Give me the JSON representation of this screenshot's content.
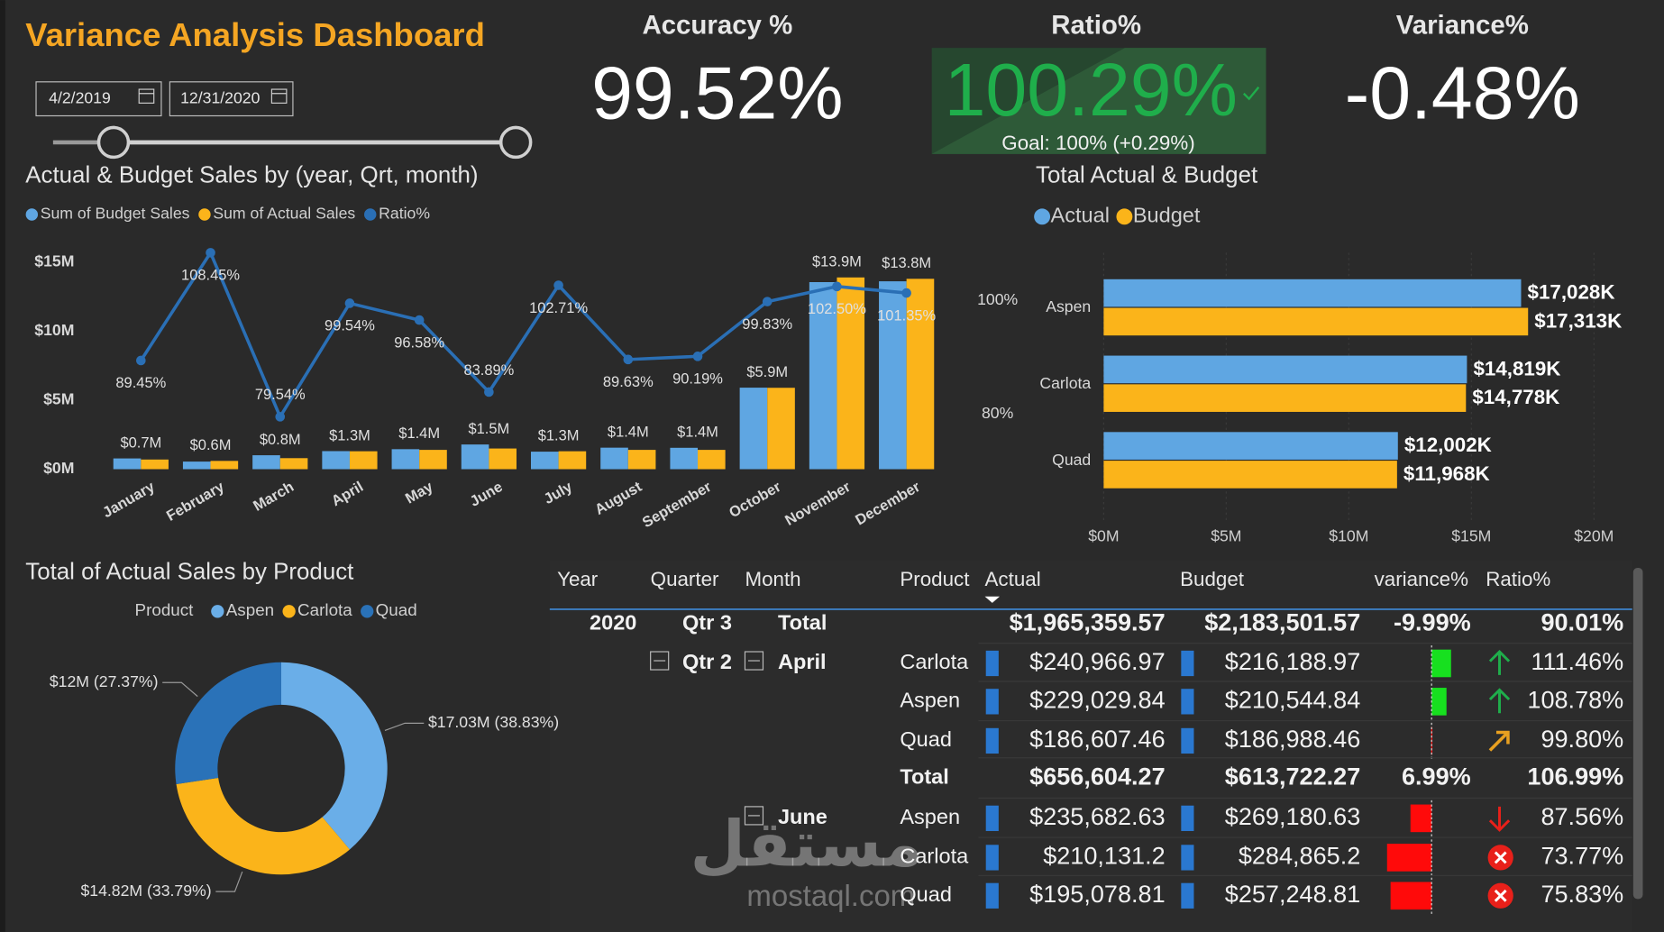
{
  "header": {
    "title": "Variance Analysis Dashboard",
    "date_from": "4/2/2019",
    "date_to": "12/31/2020"
  },
  "kpis": {
    "accuracy": {
      "title": "Accuracy %",
      "value": "99.52%"
    },
    "ratio": {
      "title": "Ratio%",
      "value": "100.29%",
      "goal": "Goal: 100% (+0.29%)"
    },
    "variance": {
      "title": "Variance%",
      "value": "-0.48%"
    }
  },
  "chart_data": [
    {
      "type": "combo",
      "title": "Actual & Budget Sales by (year, Qrt, month)",
      "categories": [
        "January",
        "February",
        "March",
        "April",
        "May",
        "June",
        "July",
        "August",
        "September",
        "October",
        "November",
        "December"
      ],
      "series": [
        {
          "name": "Sum of Budget Sales",
          "type": "bar",
          "color": "#5fa6e2",
          "values": [
            0.78,
            0.55,
            1.01,
            1.31,
            1.45,
            1.79,
            1.27,
            1.56,
            1.55,
            5.91,
            13.56,
            13.62
          ]
        },
        {
          "name": "Sum of Actual Sales",
          "type": "bar",
          "color": "#fbb41a",
          "values": [
            0.7,
            0.6,
            0.8,
            1.3,
            1.4,
            1.5,
            1.3,
            1.4,
            1.4,
            5.9,
            13.9,
            13.8
          ],
          "value_labels": [
            "$0.7M",
            "$0.6M",
            "$0.8M",
            "$1.3M",
            "$1.4M",
            "$1.5M",
            "$1.3M",
            "$1.4M",
            "$1.4M",
            "$5.9M",
            "$13.9M",
            "$13.8M"
          ]
        },
        {
          "name": "Ratio%",
          "type": "line",
          "axis": "y2",
          "color": "#2a6fb5",
          "values": [
            89.45,
            108.45,
            79.54,
            99.54,
            96.58,
            83.89,
            102.71,
            89.63,
            90.19,
            99.83,
            102.5,
            101.35
          ],
          "value_labels": [
            "89.45%",
            "108.45%",
            "79.54%",
            "99.54%",
            "96.58%",
            "83.89%",
            "102.71%",
            "89.63%",
            "90.19%",
            "99.83%",
            "102.50%",
            "101.35%"
          ]
        }
      ],
      "ylim": [
        0,
        16
      ],
      "yticks": [
        {
          "value": 0,
          "label": "$0M"
        },
        {
          "value": 5,
          "label": "$5M"
        },
        {
          "value": 10,
          "label": "$10M"
        },
        {
          "value": 15,
          "label": "$15M"
        }
      ],
      "y2lim": [
        70.3,
        109.2
      ],
      "y2ticks": [
        {
          "value": 80,
          "label": "80%"
        },
        {
          "value": 100,
          "label": "100%"
        }
      ],
      "grid": false
    },
    {
      "type": "hbar",
      "title": "Total Actual & Budget",
      "categories": [
        "Aspen",
        "Carlota",
        "Quad"
      ],
      "series": [
        {
          "name": "Actual",
          "color": "#5fa6e2",
          "values": [
            17.028,
            14.819,
            12.002
          ],
          "value_labels": [
            "$17,028K",
            "$14,819K",
            "$12,002K"
          ]
        },
        {
          "name": "Budget",
          "color": "#fbb41a",
          "values": [
            17.313,
            14.778,
            11.968
          ],
          "value_labels": [
            "$17,313K",
            "$14,778K",
            "$11,968K"
          ]
        }
      ],
      "xlim": [
        0,
        20
      ],
      "xticks": [
        {
          "value": 0,
          "label": "$0M"
        },
        {
          "value": 5,
          "label": "$5M"
        },
        {
          "value": 10,
          "label": "$10M"
        },
        {
          "value": 15,
          "label": "$15M"
        },
        {
          "value": 20,
          "label": "$20M"
        }
      ],
      "grid": true
    },
    {
      "type": "donut",
      "title": "Total of Actual Sales by Product",
      "legend_title": "Product",
      "categories": [
        "Aspen",
        "Carlota",
        "Quad"
      ],
      "values": [
        17.03,
        14.82,
        12
      ],
      "value_labels": [
        "$17.03M (38.83%)",
        "$14.82M (33.79%)",
        "$12M (27.37%)"
      ],
      "colors": [
        "#6aaee8",
        "#fbb41a",
        "#2a72b8"
      ]
    }
  ],
  "table": {
    "columns": [
      "Year",
      "Quarter",
      "Month",
      "Product",
      "Actual",
      "Budget",
      "variance%",
      "Ratio%"
    ],
    "rows": [
      {
        "year": "2020",
        "quarter": "Qtr 3",
        "month": "Total",
        "actual": "$1,965,359.57",
        "budget": "$2,183,501.57",
        "variance": "-9.99%",
        "ratio": "90.01%",
        "total": true
      },
      {
        "quarter": "Qtr 2",
        "month": "April",
        "product": "Carlota",
        "actual": "$240,966.97",
        "budget": "$216,188.97",
        "ratio": "111.46%",
        "variance_bar": 11.46,
        "status": "up"
      },
      {
        "product": "Aspen",
        "actual": "$229,029.84",
        "budget": "$210,544.84",
        "ratio": "108.78%",
        "variance_bar": 8.78,
        "status": "up"
      },
      {
        "product": "Quad",
        "actual": "$186,607.46",
        "budget": "$186,988.46",
        "ratio": "99.80%",
        "variance_bar": -0.2,
        "status": "flat"
      },
      {
        "product": "Total",
        "actual": "$656,604.27",
        "budget": "$613,722.27",
        "variance": "6.99%",
        "ratio": "106.99%",
        "total": true
      },
      {
        "month": "June",
        "product": "Aspen",
        "actual": "$235,682.63",
        "budget": "$269,180.63",
        "ratio": "87.56%",
        "variance_bar": -12.44,
        "status": "down"
      },
      {
        "product": "Carlota",
        "actual": "$210,131.2",
        "budget": "$284,865.2",
        "ratio": "73.77%",
        "variance_bar": -26.23,
        "status": "bad"
      },
      {
        "product": "Quad",
        "actual": "$195,078.81",
        "budget": "$257,248.81",
        "ratio": "75.83%",
        "variance_bar": -24.17,
        "status": "bad"
      }
    ]
  },
  "watermark": {
    "arabic": "مستقل",
    "latin": "mostaql.com"
  }
}
